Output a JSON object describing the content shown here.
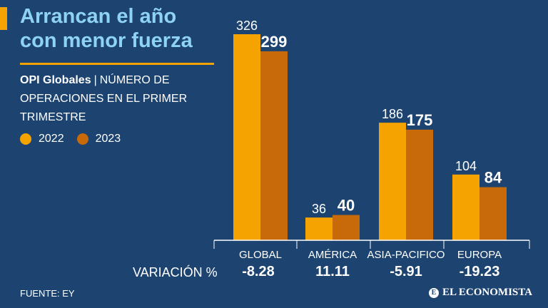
{
  "header": {
    "title_line1": "Arrancan el año",
    "title_line2": "con menor fuerza",
    "subtitle_strong": "OPI Globales",
    "subtitle_sep": "|",
    "subtitle_rest": "NÚMERO DE OPERACIONES EN EL PRIMER TRIMESTRE"
  },
  "colors": {
    "background": "#1d4470",
    "series_2022": "#f5a300",
    "series_2023": "#c86a0a",
    "title": "#8ed3f4",
    "axis": "#ffffff"
  },
  "chart_data": {
    "type": "bar",
    "title": "Arrancan el año con menor fuerza",
    "subtitle": "OPI Globales | NÚMERO DE OPERACIONES EN EL PRIMER TRIMESTRE",
    "categories": [
      "GLOBAL",
      "AMÉRICA",
      "ASIA-PACIFICO",
      "EUROPA"
    ],
    "series": [
      {
        "name": "2022",
        "values": [
          326,
          36,
          186,
          104
        ]
      },
      {
        "name": "2023",
        "values": [
          299,
          40,
          175,
          84
        ]
      }
    ],
    "ylim": [
      0,
      326
    ],
    "grid": false,
    "legend": "left",
    "variation_label": "VARIACIÓN %",
    "variation": [
      "-8.28",
      "11.11",
      "-5.91",
      "-19.23"
    ]
  },
  "footer": {
    "source": "FUENTE: EY",
    "brand": "EL ECONOMISTA",
    "brand_mark": "E"
  }
}
